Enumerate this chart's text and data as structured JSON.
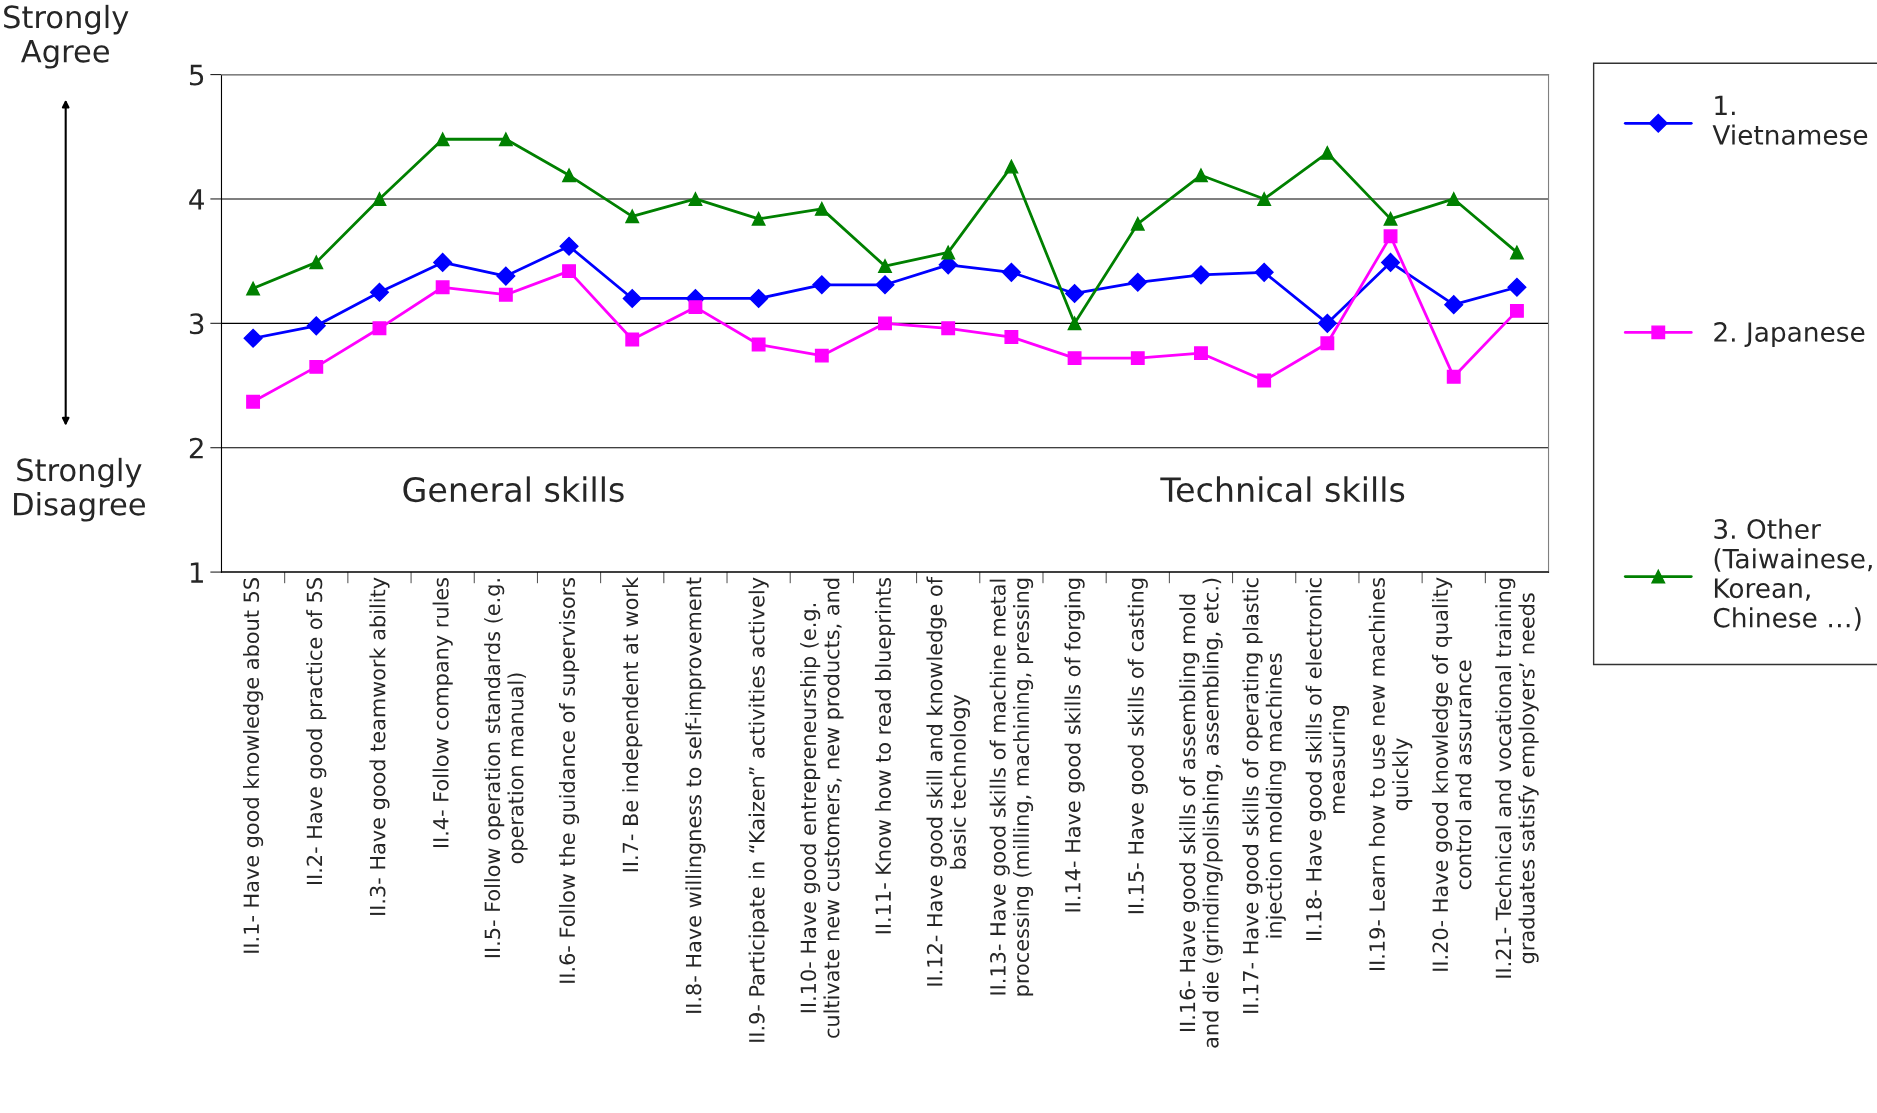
{
  "chart_data": {
    "type": "line",
    "categories": [
      "II.1- Have good knowledge about 5S",
      "II.2- Have good practice of 5S",
      "II.3- Have good teamwork ability",
      "II.4- Follow company rules",
      "II.5- Follow operation standards (e.g.\noperation manual)",
      "II.6- Follow the guidance of supervisors",
      "II.7- Be independent at work",
      "II.8- Have willingness to self-improvement",
      "II.9- Participate in “Kaizen” activities actively",
      "II.10- Have good entrepreneurship (e.g.\ncultivate new customers, new products, and",
      "II.11- Know how to read blueprints",
      "II.12- Have good skill and knowledge of\nbasic technology",
      "II.13- Have good skills of machine metal\nprocessing (milling, machining, pressing",
      "II.14- Have good skills of forging",
      "II.15- Have good skills of casting",
      "II.16- Have good skills of assembling mold\nand die (grinding/polishing, assembling, etc.)",
      "II.17- Have good skills of operating plastic\ninjection molding machines",
      "II.18- Have good skills of electronic\nmeasuring",
      "II.19- Learn how to use new machines\nquickly",
      "II.20- Have good knowledge of quality\ncontrol and assurance",
      "II.21- Technical and vocational training\ngraduates satisfy employers’ needs"
    ],
    "series": [
      {
        "name": "1.\nVietnamese",
        "color": "#0000ff",
        "marker": "diamond",
        "values": [
          2.88,
          2.98,
          3.25,
          3.49,
          3.38,
          3.62,
          3.2,
          3.2,
          3.2,
          3.31,
          3.31,
          3.47,
          3.41,
          3.24,
          3.33,
          3.39,
          3.41,
          3.0,
          3.49,
          3.15,
          3.29
        ]
      },
      {
        "name": "2. Japanese",
        "color": "#ff00ff",
        "marker": "square",
        "values": [
          2.37,
          2.65,
          2.96,
          3.29,
          3.23,
          3.42,
          2.87,
          3.13,
          2.83,
          2.74,
          3.0,
          2.96,
          2.89,
          2.72,
          2.72,
          2.76,
          2.54,
          2.84,
          3.7,
          2.57,
          3.1
        ]
      },
      {
        "name": "3. Other\n(Taiwainese,\nKorean,\nChinese …)",
        "color": "#008000",
        "marker": "triangle",
        "values": [
          3.28,
          3.49,
          4.0,
          4.48,
          4.48,
          4.19,
          3.86,
          4.0,
          3.84,
          3.92,
          3.46,
          3.57,
          4.26,
          3.0,
          3.8,
          4.19,
          4.0,
          4.37,
          3.84,
          4.0,
          3.57
        ]
      }
    ],
    "ylim": [
      1,
      5
    ],
    "yticks": [
      1,
      2,
      3,
      4,
      5
    ],
    "grid": "y",
    "legend": "right",
    "annotations": [
      "Strongly\nAgree",
      "Strongly\nDisagree",
      "General skills",
      "Technical skills"
    ]
  }
}
